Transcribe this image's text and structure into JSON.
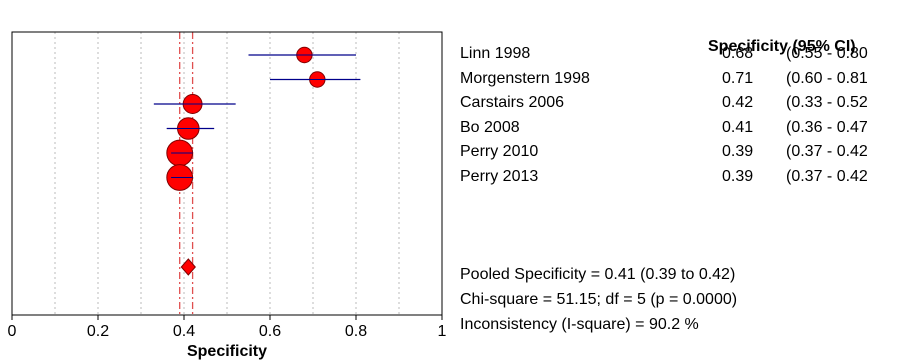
{
  "chart_data": {
    "type": "forest",
    "column_title": "Specificity (95% CI)",
    "xlabel": "Specificity",
    "xlim": [
      0,
      1
    ],
    "xticks": [
      "0",
      "0.2",
      "0.4",
      "0.6",
      "0.8",
      "1"
    ],
    "xtick_values": [
      0,
      0.2,
      0.4,
      0.6,
      0.8,
      1
    ],
    "grid": "vertical dotted at 0.1 intervals",
    "studies": [
      {
        "name": "Linn 1998",
        "estimate": 0.68,
        "estimate_label": "0.68",
        "ci_label": "(0.55 - 0.80",
        "lower": 0.55,
        "upper": 0.8,
        "weight": 1
      },
      {
        "name": "Morgenstern 1998",
        "estimate": 0.71,
        "estimate_label": "0.71",
        "ci_label": "(0.60 - 0.81",
        "lower": 0.6,
        "upper": 0.81,
        "weight": 1
      },
      {
        "name": "Carstairs 2006",
        "estimate": 0.42,
        "estimate_label": "0.42",
        "ci_label": "(0.33 - 0.52",
        "lower": 0.33,
        "upper": 0.52,
        "weight": 2
      },
      {
        "name": "Bo 2008",
        "estimate": 0.41,
        "estimate_label": "0.41",
        "ci_label": "(0.36 - 0.47",
        "lower": 0.36,
        "upper": 0.47,
        "weight": 3
      },
      {
        "name": "Perry 2010",
        "estimate": 0.39,
        "estimate_label": "0.39",
        "ci_label": "(0.37 - 0.42",
        "lower": 0.37,
        "upper": 0.42,
        "weight": 5
      },
      {
        "name": "Perry 2013",
        "estimate": 0.39,
        "estimate_label": "0.39",
        "ci_label": "(0.37 - 0.42",
        "lower": 0.37,
        "upper": 0.42,
        "weight": 5
      }
    ],
    "pooled": {
      "estimate": 0.41,
      "lower": 0.39,
      "upper": 0.42
    },
    "stats": {
      "pooled_text": "Pooled Specificity = 0.41 (0.39 to 0.42)",
      "chi_text": "Chi-square = 51.15; df =  5 (p = 0.0000)",
      "inconsistency_text": "Inconsistency (I-square) = 90.2 %"
    },
    "colors": {
      "marker": "#ff0000",
      "ci_line": "#00008b",
      "pooled_line": "#e05050",
      "grid": "#bbbbbb"
    }
  }
}
